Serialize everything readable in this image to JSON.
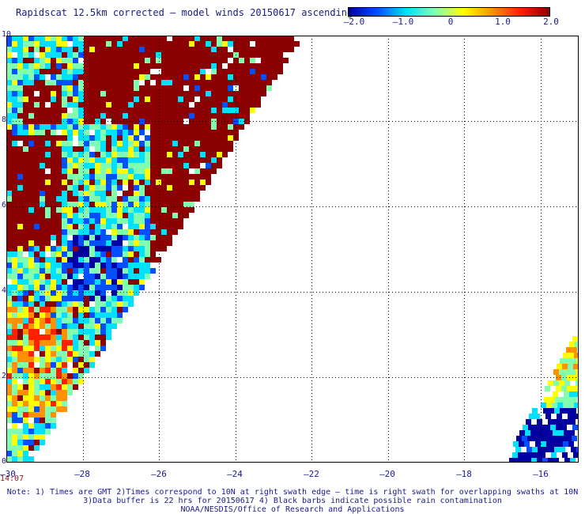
{
  "header": {
    "title": "Rapidscat 12.5km corrected – model winds 20150617 ascending"
  },
  "colorbar": {
    "ticks": [
      "–2.0",
      "–1.0",
      "0",
      "1.0",
      "2.0"
    ],
    "tick_values": [
      -2.0,
      -1.0,
      0,
      1.0,
      2.0
    ],
    "colors": [
      "#0000a0",
      "#0050ff",
      "#00e0ff",
      "#80ffb0",
      "#ffff00",
      "#ff9000",
      "#ff2000",
      "#8b0000"
    ]
  },
  "axes": {
    "x_ticks": [
      "–30",
      "–28",
      "–26",
      "–24",
      "–22",
      "–20",
      "–18",
      "–16"
    ],
    "x_values": [
      -30,
      -28,
      -26,
      -24,
      -22,
      -20,
      -18,
      -16
    ],
    "y_ticks": [
      "10",
      "8",
      "6",
      "4",
      "2",
      "0"
    ],
    "y_values": [
      10,
      8,
      6,
      4,
      2,
      0
    ],
    "x_range": [
      -30,
      -15
    ],
    "y_range": [
      0,
      10
    ],
    "grid": "dotted"
  },
  "time_label": "14:07",
  "notes": {
    "line1": "Note: 1) Times are GMT 2)Times correspond to 10N at right swath edge – time is right swath for overlapping swaths at 10N",
    "line2": "3)Data buffer is 22 hrs for 20150617 4) Black barbs indicate possible rain contamination",
    "line3": "NOAA/NESDIS/Office of Research and Applications"
  }
}
